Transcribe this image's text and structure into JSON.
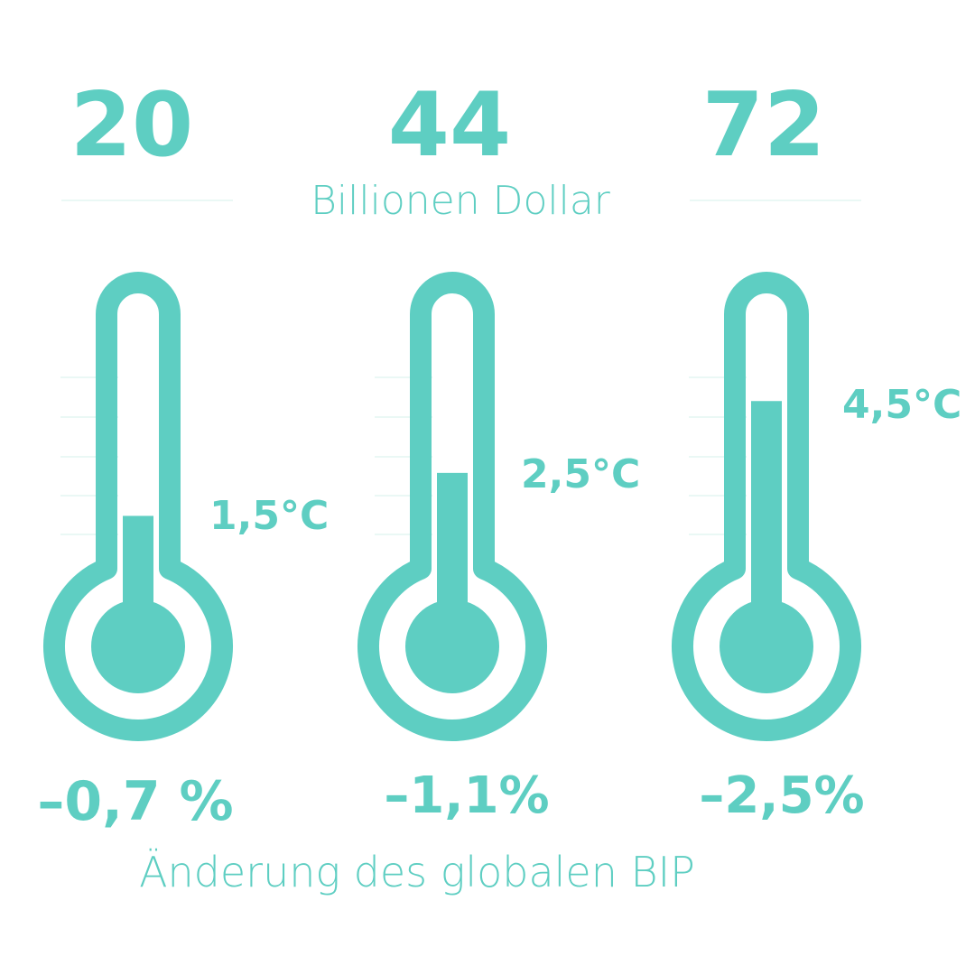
{
  "accent_color": "#5ecec2",
  "divider_color": "#e3f5f2",
  "header_caption": "Billionen Dollar",
  "footer_caption": "Änderung des globalen BIP",
  "chart_data": {
    "type": "bar",
    "categories": [
      "1,5°C",
      "2,5°C",
      "4,5°C"
    ],
    "title": "",
    "ylim": [
      0,
      6
    ],
    "series": [
      {
        "values": [
          1.5,
          2.5,
          4.5
        ]
      }
    ],
    "cost_labels": [
      "20",
      "44",
      "72"
    ],
    "cost_values": [
      20,
      44,
      72
    ],
    "gdp_labels": [
      "–0,7 %",
      "–1,1%",
      "–2,5%"
    ],
    "gdp_values": [
      -0.7,
      -1.1,
      -2.5
    ]
  }
}
